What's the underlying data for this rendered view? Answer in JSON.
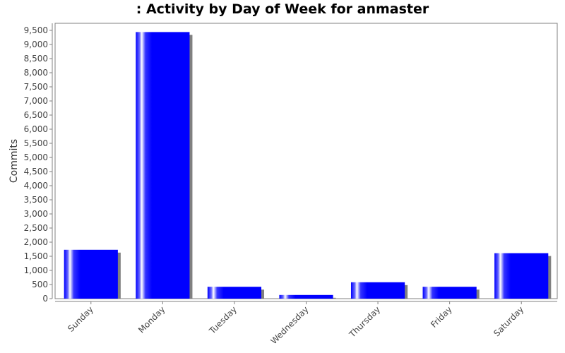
{
  "chart_data": {
    "type": "bar",
    "title": ": Activity by Day of Week for anmaster",
    "xlabel": "",
    "ylabel": "Commits",
    "categories": [
      "Sunday",
      "Monday",
      "Tuesday",
      "Wednesday",
      "Thursday",
      "Friday",
      "Saturday"
    ],
    "values": [
      1730,
      9440,
      420,
      130,
      580,
      420,
      1610
    ],
    "ylim": [
      0,
      9750
    ],
    "yticks": [
      0,
      500,
      1000,
      1500,
      2000,
      2500,
      3000,
      3500,
      4000,
      4500,
      5000,
      5500,
      6000,
      6500,
      7000,
      7500,
      8000,
      8500,
      9000,
      9500
    ],
    "ytick_labels": [
      "0",
      "500",
      "1,000",
      "1,500",
      "2,000",
      "2,500",
      "3,000",
      "3,500",
      "4,000",
      "4,500",
      "5,000",
      "5,500",
      "6,000",
      "6,500",
      "7,000",
      "7,500",
      "8,000",
      "8,500",
      "9,000",
      "9,500"
    ],
    "grid": false,
    "legend": "none",
    "colors": {
      "bar": "#0000ff",
      "shadow": "#808080",
      "plot_border": "#808080"
    }
  }
}
